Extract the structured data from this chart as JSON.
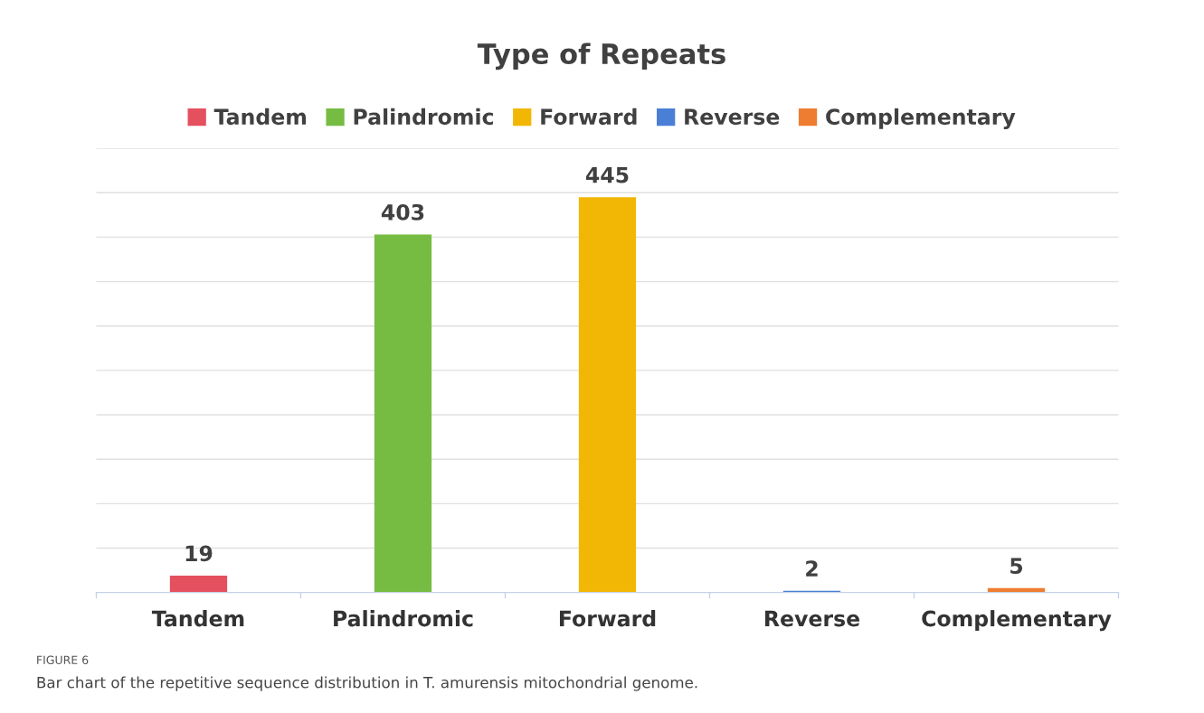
{
  "chart_data": {
    "type": "bar",
    "title": "Type of Repeats",
    "categories": [
      "Tandem",
      "Palindromic",
      "Forward",
      "Reverse",
      "Complementary"
    ],
    "series": [
      {
        "name": "Tandem",
        "color": "#e5505f",
        "values": [
          19,
          null,
          null,
          null,
          null
        ]
      },
      {
        "name": "Palindromic",
        "color": "#76bc43",
        "values": [
          null,
          403,
          null,
          null,
          null
        ]
      },
      {
        "name": "Forward",
        "color": "#f2b705",
        "values": [
          null,
          null,
          445,
          null,
          null
        ]
      },
      {
        "name": "Reverse",
        "color": "#4a7fd6",
        "values": [
          null,
          null,
          null,
          2,
          null
        ]
      },
      {
        "name": "Complementary",
        "color": "#ee7d31",
        "values": [
          null,
          null,
          null,
          null,
          5
        ]
      }
    ],
    "ylim": [
      0,
      500
    ],
    "yticks": [
      0,
      50,
      100,
      150,
      200,
      250,
      300,
      350,
      400,
      450,
      500
    ],
    "tick_labels": "x",
    "grid": "y",
    "legend": "top",
    "data_labels": true,
    "annotations": [
      "FIGURE 6",
      "Bar chart of the repetitive sequence distribution in T. amurensis mitochondrial genome."
    ]
  }
}
